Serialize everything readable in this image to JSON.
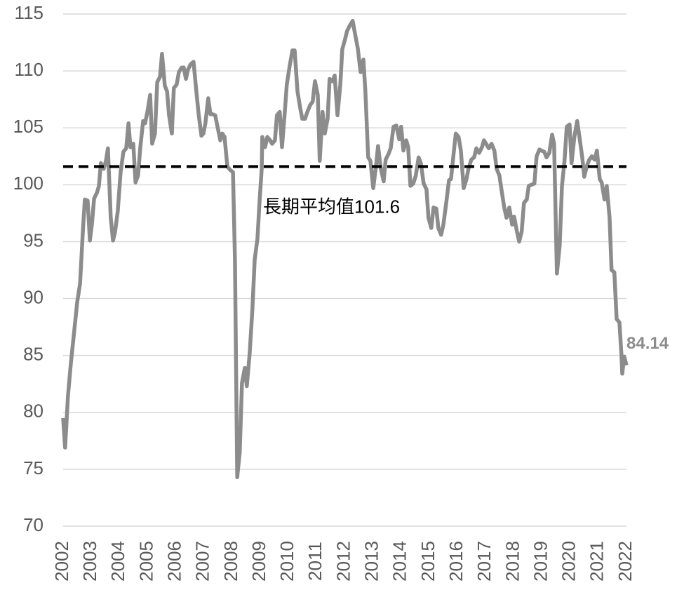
{
  "chart_data": {
    "type": "line",
    "x": [
      2002.0,
      2002.07,
      2002.17,
      2002.27,
      2002.4,
      2002.5,
      2002.6,
      2002.7,
      2002.77,
      2002.87,
      2002.95,
      2003.02,
      2003.1,
      2003.2,
      2003.27,
      2003.34,
      2003.44,
      2003.52,
      2003.59,
      2003.69,
      2003.77,
      2003.84,
      2003.94,
      2004.04,
      2004.14,
      2004.24,
      2004.32,
      2004.39,
      2004.49,
      2004.57,
      2004.66,
      2004.74,
      2004.84,
      2004.91,
      2004.99,
      2005.09,
      2005.16,
      2005.26,
      2005.34,
      2005.44,
      2005.51,
      2005.61,
      2005.69,
      2005.76,
      2005.86,
      2005.93,
      2006.03,
      2006.11,
      2006.21,
      2006.28,
      2006.36,
      2006.43,
      2006.53,
      2006.63,
      2006.71,
      2006.81,
      2006.91,
      2006.98,
      2007.05,
      2007.15,
      2007.23,
      2007.3,
      2007.4,
      2007.48,
      2007.58,
      2007.65,
      2007.73,
      2007.83,
      2007.93,
      2008.03,
      2008.1,
      2008.18,
      2008.27,
      2008.35,
      2008.45,
      2008.52,
      2008.62,
      2008.72,
      2008.8,
      2008.9,
      2008.97,
      2009.05,
      2009.07,
      2009.17,
      2009.25,
      2009.35,
      2009.42,
      2009.52,
      2009.59,
      2009.69,
      2009.77,
      2009.87,
      2009.94,
      2010.04,
      2010.14,
      2010.22,
      2010.32,
      2010.42,
      2010.49,
      2010.59,
      2010.67,
      2010.77,
      2010.86,
      2010.94,
      2011.04,
      2011.11,
      2011.21,
      2011.29,
      2011.39,
      2011.46,
      2011.56,
      2011.64,
      2011.74,
      2011.84,
      2011.91,
      2012.01,
      2012.08,
      2012.18,
      2012.28,
      2012.36,
      2012.46,
      2012.56,
      2012.66,
      2012.73,
      2012.83,
      2012.91,
      2013.01,
      2013.11,
      2013.18,
      2013.28,
      2013.38,
      2013.45,
      2013.55,
      2013.63,
      2013.73,
      2013.83,
      2013.93,
      2014.0,
      2014.08,
      2014.18,
      2014.25,
      2014.33,
      2014.43,
      2014.52,
      2014.62,
      2014.7,
      2014.8,
      2014.9,
      2014.97,
      2015.07,
      2015.15,
      2015.25,
      2015.32,
      2015.42,
      2015.5,
      2015.6,
      2015.7,
      2015.77,
      2015.87,
      2015.94,
      2016.04,
      2016.12,
      2016.22,
      2016.32,
      2016.39,
      2016.49,
      2016.59,
      2016.67,
      2016.77,
      2016.87,
      2016.94,
      2017.04,
      2017.11,
      2017.21,
      2017.31,
      2017.39,
      2017.49,
      2017.56,
      2017.66,
      2017.74,
      2017.84,
      2017.94,
      2018.01,
      2018.11,
      2018.19,
      2018.28,
      2018.36,
      2018.46,
      2018.53,
      2018.63,
      2018.73,
      2018.81,
      2018.91,
      2018.98,
      2019.08,
      2019.16,
      2019.26,
      2019.36,
      2019.43,
      2019.53,
      2019.63,
      2019.71,
      2019.8,
      2019.88,
      2019.98,
      2020.05,
      2020.15,
      2020.25,
      2020.33,
      2020.43,
      2020.5,
      2020.6,
      2020.68,
      2020.77,
      2020.87,
      2020.95,
      2021.05,
      2021.12,
      2021.22,
      2021.3,
      2021.4,
      2021.47,
      2021.57,
      2021.65,
      2021.75,
      2021.82,
      2021.85,
      2021.92,
      2022.0
    ],
    "series": [
      {
        "color": "#8c8c8c",
        "values": [
          79.5,
          76.9,
          81.4,
          84.2,
          87.3,
          89.7,
          91.3,
          95.9,
          98.7,
          98.6,
          95.1,
          96.5,
          98.8,
          99.3,
          99.9,
          101.9,
          101.4,
          102.1,
          103.2,
          97.1,
          95.1,
          95.8,
          97.7,
          101.1,
          102.9,
          103.2,
          105.4,
          103.3,
          103.6,
          100.2,
          100.8,
          103.3,
          105.6,
          105.4,
          106.4,
          107.9,
          103.6,
          104.5,
          109.0,
          109.5,
          111.5,
          108.7,
          108.2,
          106.1,
          104.5,
          108.5,
          108.8,
          109.9,
          110.3,
          110.3,
          109.3,
          110.1,
          110.6,
          110.8,
          108.7,
          106.2,
          104.3,
          104.5,
          105.4,
          107.6,
          106.2,
          106.2,
          106.1,
          105.1,
          103.9,
          104.5,
          104.2,
          101.6,
          101.3,
          101.1,
          93.4,
          74.3,
          76.5,
          82.6,
          83.9,
          82.3,
          85.1,
          89.1,
          93.4,
          95.3,
          98.4,
          101.4,
          104.2,
          103.3,
          104.2,
          103.9,
          103.6,
          103.9,
          106.1,
          106.4,
          103.3,
          106.4,
          108.8,
          110.4,
          111.8,
          111.8,
          108.2,
          106.7,
          105.8,
          105.8,
          106.4,
          107.0,
          107.3,
          109.1,
          107.9,
          102.1,
          106.4,
          104.5,
          105.8,
          109.3,
          109.1,
          109.6,
          106.1,
          108.8,
          111.9,
          112.8,
          113.5,
          114.0,
          114.4,
          113.3,
          112.0,
          109.9,
          111.0,
          108.2,
          102.4,
          102.1,
          99.7,
          101.7,
          103.4,
          101.4,
          100.3,
          102.2,
          102.7,
          103.2,
          105.1,
          105.2,
          104.0,
          105.1,
          103.0,
          103.9,
          103.3,
          99.9,
          100.1,
          100.8,
          102.4,
          101.9,
          100.1,
          99.6,
          97.1,
          96.2,
          98.0,
          97.9,
          96.2,
          95.6,
          96.5,
          98.4,
          100.4,
          100.5,
          102.9,
          104.5,
          104.2,
          103.0,
          99.7,
          100.5,
          101.4,
          102.2,
          102.4,
          103.2,
          102.8,
          103.3,
          103.9,
          103.5,
          103.2,
          103.6,
          103.0,
          101.4,
          100.8,
          99.6,
          98.0,
          97.1,
          98.0,
          96.5,
          97.2,
          95.9,
          95.0,
          95.9,
          98.4,
          98.7,
          99.9,
          100.0,
          100.1,
          102.5,
          103.1,
          103.0,
          102.9,
          102.4,
          102.8,
          104.4,
          103.6,
          92.2,
          94.7,
          99.9,
          102.1,
          105.1,
          105.3,
          101.9,
          104.2,
          105.6,
          104.2,
          102.4,
          100.7,
          101.7,
          102.2,
          102.5,
          102.2,
          103.0,
          100.5,
          100.2,
          98.7,
          99.9,
          97.1,
          92.5,
          92.3,
          88.2,
          87.9,
          85.1,
          83.4,
          84.9,
          84.14
        ]
      }
    ],
    "xlim": [
      2002,
      2022
    ],
    "xticks": [
      2002,
      2003,
      2004,
      2005,
      2006,
      2007,
      2008,
      2009,
      2010,
      2011,
      2012,
      2013,
      2014,
      2015,
      2016,
      2017,
      2018,
      2019,
      2020,
      2021,
      2022
    ],
    "ylim": [
      70,
      115
    ],
    "yticks": [
      70,
      75,
      80,
      85,
      90,
      95,
      100,
      105,
      110,
      115
    ],
    "grid": true,
    "reference_line": {
      "value": 101.6,
      "label": "長期平均值101.6",
      "color": "#000000"
    }
  }
}
